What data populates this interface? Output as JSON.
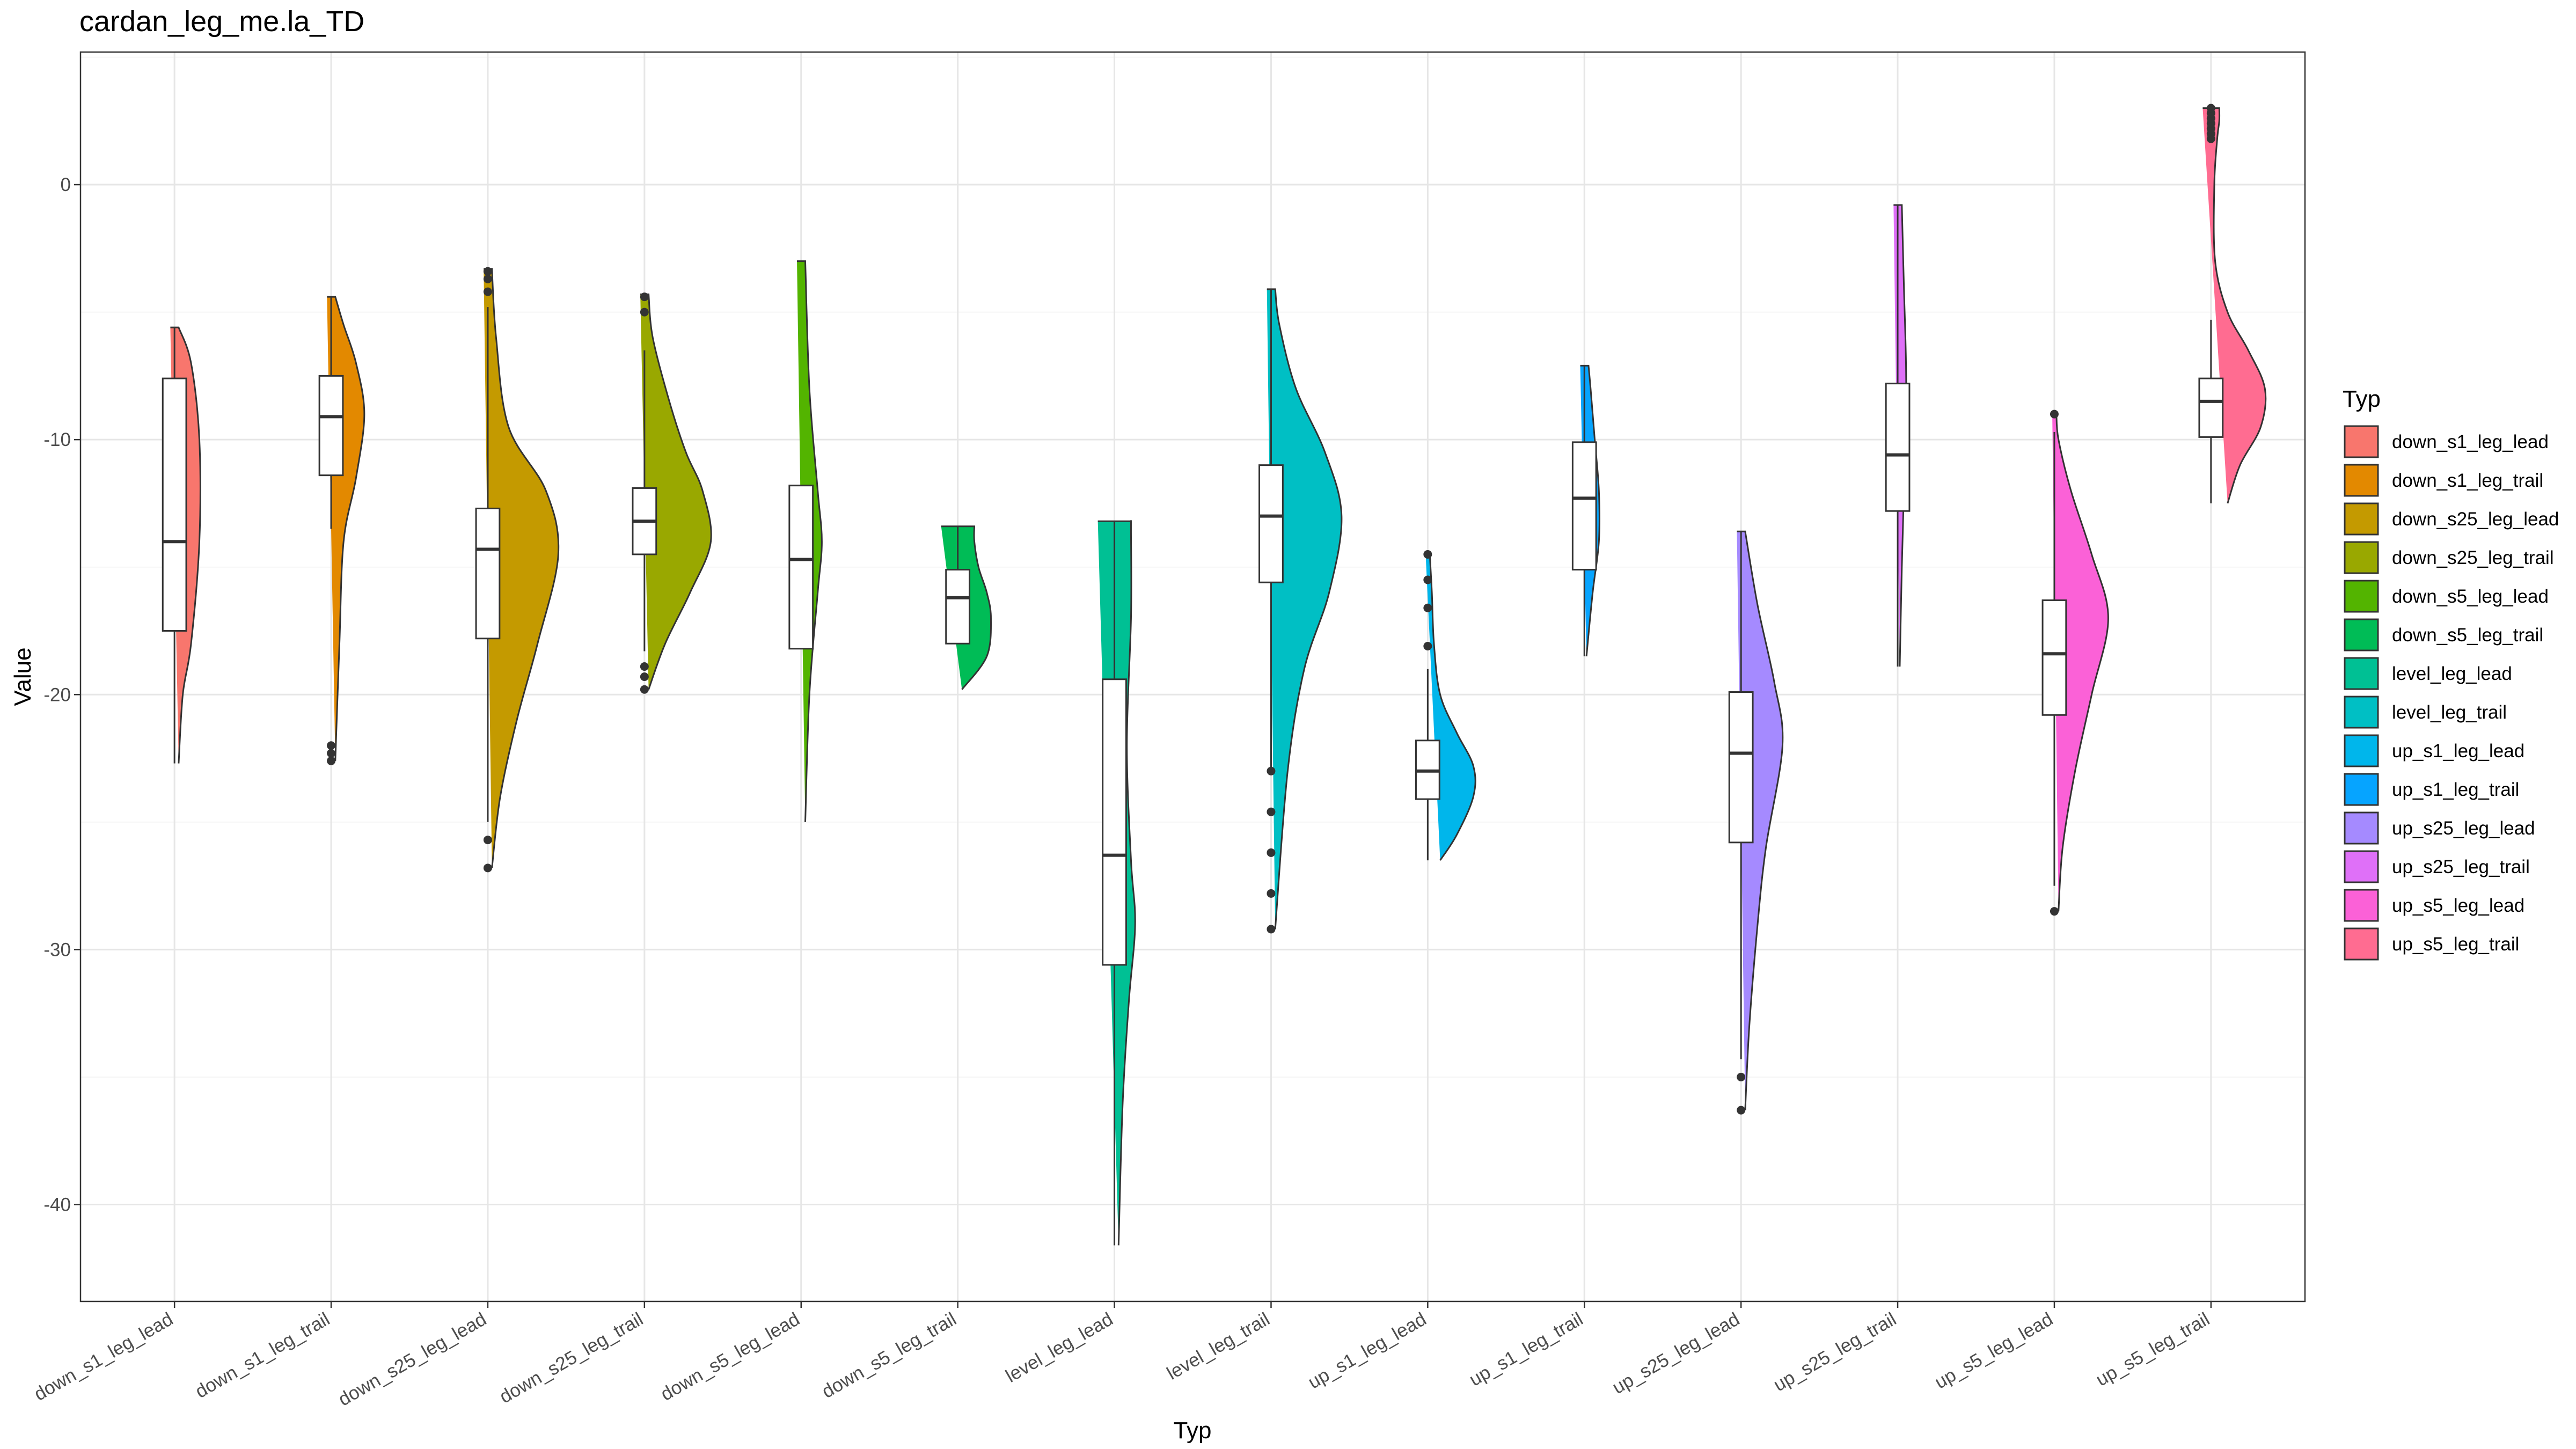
{
  "chart_data": {
    "type": "violin",
    "title": "cardan_leg_me.la_TD",
    "xlabel": "Typ",
    "ylabel": "Value",
    "ylim": [
      -43.8,
      5.2
    ],
    "yticks": [
      0,
      -10,
      -20,
      -30,
      -40
    ],
    "ytick_labels": [
      "0",
      "-10",
      "-20",
      "-30",
      "-40"
    ],
    "grid": true,
    "legend": {
      "title": "Typ",
      "position": "right"
    },
    "categories": [
      "down_s1_leg_lead",
      "down_s1_leg_trail",
      "down_s25_leg_lead",
      "down_s25_leg_trail",
      "down_s5_leg_lead",
      "down_s5_leg_trail",
      "level_leg_lead",
      "level_leg_trail",
      "up_s1_leg_lead",
      "up_s1_leg_trail",
      "up_s25_leg_lead",
      "up_s25_leg_trail",
      "up_s5_leg_lead",
      "up_s5_leg_trail"
    ],
    "series": [
      {
        "name": "down_s1_leg_lead",
        "color": "#F8766D",
        "violin_min": -22.7,
        "violin_max": -5.6,
        "density": [
          [
            -22.7,
            0.01
          ],
          [
            -20,
            0.02
          ],
          [
            -18,
            0.04
          ],
          [
            -14,
            0.06
          ],
          [
            -10,
            0.06
          ],
          [
            -7,
            0.04
          ],
          [
            -5.6,
            0.01
          ]
        ],
        "box": {
          "lower_whisker": -22.7,
          "q1": -17.5,
          "median": -14.0,
          "q3": -7.6,
          "upper_whisker": -5.6
        },
        "outliers": []
      },
      {
        "name": "down_s1_leg_trail",
        "color": "#E38900",
        "violin_min": -22.6,
        "violin_max": -4.4,
        "density": [
          [
            -22.6,
            0.01
          ],
          [
            -18,
            0.02
          ],
          [
            -14,
            0.03
          ],
          [
            -11.5,
            0.06
          ],
          [
            -9,
            0.08
          ],
          [
            -7,
            0.06
          ],
          [
            -5.5,
            0.03
          ],
          [
            -4.4,
            0.01
          ]
        ],
        "box": {
          "lower_whisker": -13.5,
          "q1": -11.4,
          "median": -9.1,
          "q3": -7.5,
          "upper_whisker": -4.4
        },
        "outliers": [
          -22.0,
          -22.3,
          -22.6
        ]
      },
      {
        "name": "down_s25_leg_lead",
        "color": "#C49A00",
        "violin_min": -26.8,
        "violin_max": -3.3,
        "density": [
          [
            -26.8,
            0.01
          ],
          [
            -24,
            0.03
          ],
          [
            -21,
            0.07
          ],
          [
            -18,
            0.12
          ],
          [
            -14.5,
            0.17
          ],
          [
            -12,
            0.14
          ],
          [
            -9.5,
            0.05
          ],
          [
            -6,
            0.02
          ],
          [
            -3.3,
            0.01
          ]
        ],
        "box": {
          "lower_whisker": -25.0,
          "q1": -17.8,
          "median": -14.3,
          "q3": -12.7,
          "upper_whisker": -4.8
        },
        "outliers": [
          -3.4,
          -3.7,
          -4.2,
          -25.7,
          -26.8
        ]
      },
      {
        "name": "down_s25_leg_trail",
        "color": "#99A800",
        "violin_min": -19.8,
        "violin_max": -4.3,
        "density": [
          [
            -19.8,
            0.01
          ],
          [
            -18,
            0.05
          ],
          [
            -16,
            0.11
          ],
          [
            -14,
            0.16
          ],
          [
            -12,
            0.14
          ],
          [
            -10.5,
            0.1
          ],
          [
            -8.5,
            0.06
          ],
          [
            -6,
            0.02
          ],
          [
            -4.3,
            0.01
          ]
        ],
        "box": {
          "lower_whisker": -18.3,
          "q1": -14.5,
          "median": -13.2,
          "q3": -11.9,
          "upper_whisker": -6.5
        },
        "outliers": [
          -4.4,
          -5.0,
          -18.9,
          -19.3,
          -19.8
        ]
      },
      {
        "name": "down_s5_leg_lead",
        "color": "#53B400",
        "violin_min": -25.0,
        "violin_max": -3.0,
        "density": [
          [
            -25,
            0.01
          ],
          [
            -20,
            0.02
          ],
          [
            -16,
            0.04
          ],
          [
            -14,
            0.05
          ],
          [
            -12,
            0.04
          ],
          [
            -8,
            0.02
          ],
          [
            -3,
            0.01
          ]
        ],
        "box": {
          "lower_whisker": -18.2,
          "q1": -18.2,
          "median": -14.7,
          "q3": -11.8,
          "upper_whisker": -11.8
        },
        "outliers": []
      },
      {
        "name": "down_s5_leg_trail",
        "color": "#00BC56",
        "violin_min": -19.8,
        "violin_max": -13.4,
        "density": [
          [
            -19.8,
            0.01
          ],
          [
            -18.5,
            0.07
          ],
          [
            -17,
            0.08
          ],
          [
            -16,
            0.07
          ],
          [
            -15,
            0.05
          ],
          [
            -14,
            0.04
          ],
          [
            -13.4,
            0.04
          ]
        ],
        "box": {
          "lower_whisker": -18.0,
          "q1": -18.0,
          "median": -16.2,
          "q3": -15.1,
          "upper_whisker": -13.4
        },
        "outliers": []
      },
      {
        "name": "level_leg_lead",
        "color": "#00C094",
        "violin_min": -41.6,
        "violin_max": -13.2,
        "density": [
          [
            -41.6,
            0.01
          ],
          [
            -36,
            0.02
          ],
          [
            -32,
            0.035
          ],
          [
            -29,
            0.05
          ],
          [
            -26.5,
            0.04
          ],
          [
            -22,
            0.03
          ],
          [
            -17,
            0.04
          ],
          [
            -13.6,
            0.04
          ],
          [
            -13.2,
            0.04
          ]
        ],
        "box": {
          "lower_whisker": -41.6,
          "q1": -30.6,
          "median": -26.3,
          "q3": -19.4,
          "upper_whisker": -13.2
        },
        "outliers": []
      },
      {
        "name": "level_leg_trail",
        "color": "#00BFC4",
        "violin_min": -29.2,
        "violin_max": -4.1,
        "density": [
          [
            -29.2,
            0.01
          ],
          [
            -23,
            0.04
          ],
          [
            -19,
            0.08
          ],
          [
            -16,
            0.14
          ],
          [
            -13,
            0.17
          ],
          [
            -10.5,
            0.13
          ],
          [
            -8,
            0.06
          ],
          [
            -5.5,
            0.02
          ],
          [
            -4.1,
            0.01
          ]
        ],
        "box": {
          "lower_whisker": -22.9,
          "q1": -15.6,
          "median": -13.0,
          "q3": -11.0,
          "upper_whisker": -4.1
        },
        "outliers": [
          -23.0,
          -24.6,
          -26.2,
          -27.8,
          -29.2
        ]
      },
      {
        "name": "up_s1_leg_lead",
        "color": "#00B6EB",
        "violin_min": -26.5,
        "violin_max": -14.5,
        "density": [
          [
            -26.5,
            0.03
          ],
          [
            -25.5,
            0.07
          ],
          [
            -24,
            0.11
          ],
          [
            -22.8,
            0.11
          ],
          [
            -21.5,
            0.07
          ],
          [
            -20,
            0.03
          ],
          [
            -18,
            0.015
          ],
          [
            -16,
            0.01
          ],
          [
            -14.5,
            0.005
          ]
        ],
        "box": {
          "lower_whisker": -26.5,
          "q1": -24.1,
          "median": -23.0,
          "q3": -21.8,
          "upper_whisker": -19.0
        },
        "outliers": [
          -14.5,
          -15.5,
          -16.6,
          -18.1
        ]
      },
      {
        "name": "up_s1_leg_trail",
        "color": "#06A4FF",
        "violin_min": -18.5,
        "violin_max": -7.1,
        "density": [
          [
            -18.5,
            0.005
          ],
          [
            -16,
            0.02
          ],
          [
            -14,
            0.035
          ],
          [
            -12,
            0.035
          ],
          [
            -10,
            0.025
          ],
          [
            -8,
            0.015
          ],
          [
            -7.1,
            0.01
          ]
        ],
        "box": {
          "lower_whisker": -18.5,
          "q1": -15.1,
          "median": -12.3,
          "q3": -10.1,
          "upper_whisker": -7.1
        },
        "outliers": []
      },
      {
        "name": "up_s25_leg_lead",
        "color": "#A58AFF",
        "violin_min": -36.3,
        "violin_max": -13.6,
        "density": [
          [
            -36.3,
            0.01
          ],
          [
            -33,
            0.02
          ],
          [
            -29,
            0.04
          ],
          [
            -26,
            0.06
          ],
          [
            -22,
            0.1
          ],
          [
            -19.5,
            0.08
          ],
          [
            -16.5,
            0.04
          ],
          [
            -13.6,
            0.01
          ]
        ],
        "box": {
          "lower_whisker": -34.3,
          "q1": -25.8,
          "median": -22.3,
          "q3": -19.9,
          "upper_whisker": -13.6
        },
        "outliers": [
          -35.0,
          -36.3
        ]
      },
      {
        "name": "up_s25_leg_trail",
        "color": "#DF70F8",
        "violin_min": -18.9,
        "violin_max": -0.8,
        "density": [
          [
            -18.9,
            0.005
          ],
          [
            -15,
            0.01
          ],
          [
            -12,
            0.015
          ],
          [
            -10,
            0.02
          ],
          [
            -7,
            0.02
          ],
          [
            -4,
            0.015
          ],
          [
            -0.8,
            0.01
          ]
        ],
        "box": {
          "lower_whisker": -18.9,
          "q1": -12.8,
          "median": -10.6,
          "q3": -7.8,
          "upper_whisker": -0.8
        },
        "outliers": []
      },
      {
        "name": "up_s5_leg_lead",
        "color": "#FB61D7",
        "violin_min": -28.5,
        "violin_max": -9.0,
        "density": [
          [
            -28.5,
            0.01
          ],
          [
            -26,
            0.02
          ],
          [
            -23,
            0.05
          ],
          [
            -20,
            0.09
          ],
          [
            -17,
            0.13
          ],
          [
            -14.5,
            0.09
          ],
          [
            -12,
            0.04
          ],
          [
            -10,
            0.01
          ],
          [
            -9,
            0.005
          ]
        ],
        "box": {
          "lower_whisker": -27.5,
          "q1": -20.8,
          "median": -18.4,
          "q3": -16.3,
          "upper_whisker": -9.7
        },
        "outliers": [
          -9.0,
          -28.5
        ]
      },
      {
        "name": "up_s5_leg_trail",
        "color": "#FF6C91",
        "violin_min": -12.5,
        "violin_max": 3.0,
        "density": [
          [
            -12.5,
            0.04
          ],
          [
            -11,
            0.07
          ],
          [
            -9.5,
            0.12
          ],
          [
            -8,
            0.13
          ],
          [
            -6.5,
            0.09
          ],
          [
            -5,
            0.04
          ],
          [
            -3,
            0.01
          ],
          [
            0,
            0.008
          ],
          [
            1.8,
            0.015
          ],
          [
            2.5,
            0.02
          ],
          [
            3,
            0.02
          ]
        ],
        "box": {
          "lower_whisker": -12.5,
          "q1": -9.9,
          "median": -8.5,
          "q3": -7.6,
          "upper_whisker": -5.3
        },
        "outliers": [
          1.8,
          2.0,
          2.2,
          2.4,
          2.6,
          2.8,
          3.0
        ]
      }
    ]
  }
}
